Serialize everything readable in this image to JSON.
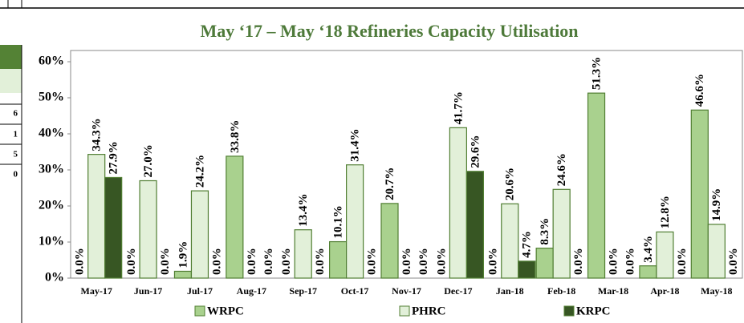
{
  "table_fragment": {
    "cells": [
      "6",
      "1",
      "5",
      "0"
    ]
  },
  "chart_data": {
    "type": "bar",
    "title": "May ‘17 –  May ‘18  Refineries Capacity Utilisation",
    "categories": [
      "May-17",
      "Jun-17",
      "Jul-17",
      "Aug-17",
      "Sep-17",
      "Oct-17",
      "Nov-17",
      "Dec-17",
      "Jan-18",
      "Feb-18",
      "Mar-18",
      "Apr-18",
      "May-18"
    ],
    "series": [
      {
        "name": "WRPC",
        "color": "#a9d18e",
        "values": [
          0.0,
          0.0,
          1.9,
          33.8,
          0.0,
          10.1,
          20.7,
          0.0,
          0.0,
          8.3,
          51.3,
          3.4,
          46.6
        ],
        "value_labels": [
          "0.0%",
          "0.0%",
          "1.9%",
          "33.8%",
          "0.0%",
          "10.1%",
          "20.7%",
          "0.0%",
          "0.0%",
          "8.3%",
          "51.3%",
          "3.4%",
          "46.6%"
        ]
      },
      {
        "name": "PHRC",
        "color": "#e2f0d9",
        "values": [
          34.3,
          27.0,
          24.2,
          0.0,
          13.4,
          31.4,
          0.0,
          41.7,
          20.6,
          24.6,
          0.0,
          12.8,
          14.9
        ],
        "value_labels": [
          "34.3%",
          "27.0%",
          "24.2%",
          "0.0%",
          "13.4%",
          "31.4%",
          "0.0%",
          "41.7%",
          "20.6%",
          "24.6%",
          "0.0%",
          "12.8%",
          "14.9%"
        ]
      },
      {
        "name": "KRPC",
        "color": "#375623",
        "values": [
          27.9,
          0.0,
          0.0,
          0.0,
          0.0,
          0.0,
          0.0,
          29.6,
          4.7,
          0.0,
          0.0,
          0.0,
          0.0
        ],
        "value_labels": [
          "27.9%",
          "0.0%",
          "0.0%",
          "0.0%",
          "0.0%",
          "0.0%",
          "0.0%",
          "29.6%",
          "4.7%",
          "0.0%",
          "0.0%",
          "0.0%",
          "0.0%"
        ]
      }
    ],
    "ylim": [
      0,
      60
    ],
    "yticks": [
      {
        "value": 0,
        "label": "0%"
      },
      {
        "value": 10,
        "label": "10%"
      },
      {
        "value": 20,
        "label": "20%"
      },
      {
        "value": 30,
        "label": "30%"
      },
      {
        "value": 40,
        "label": "40%"
      },
      {
        "value": 50,
        "label": "50%"
      },
      {
        "value": 60,
        "label": "60%"
      }
    ],
    "grid": false,
    "legend": "bottom"
  }
}
